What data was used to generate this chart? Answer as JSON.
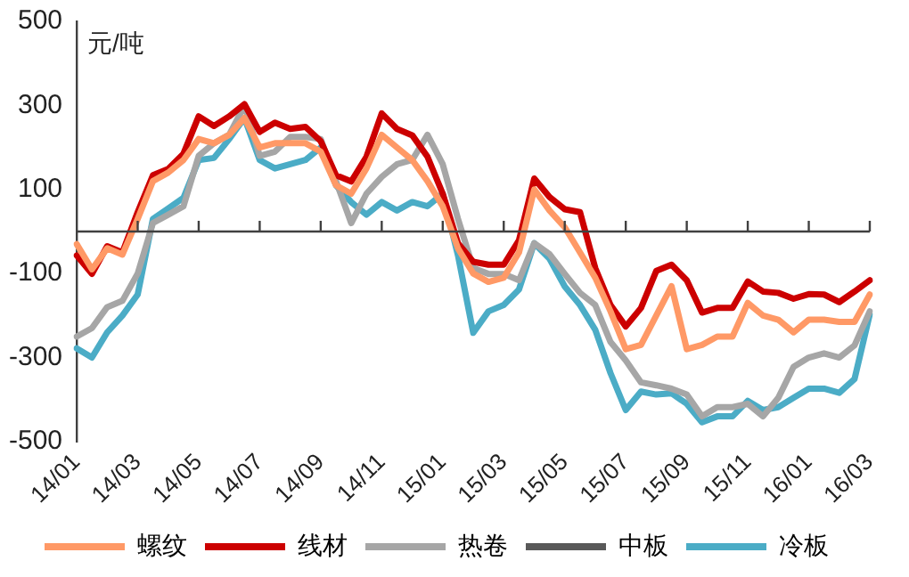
{
  "chart_data": {
    "type": "line",
    "ylabel": "元/吨",
    "categories": [
      "14/01",
      null,
      null,
      null,
      "14/03",
      null,
      null,
      null,
      "14/05",
      null,
      null,
      null,
      "14/07",
      null,
      null,
      null,
      "14/09",
      null,
      null,
      null,
      "14/11",
      null,
      null,
      null,
      "15/01",
      null,
      null,
      null,
      "15/03",
      null,
      null,
      null,
      "15/05",
      null,
      null,
      null,
      "15/07",
      null,
      null,
      null,
      "15/09",
      null,
      null,
      null,
      "15/11",
      null,
      null,
      null,
      "16/01",
      null,
      null,
      null,
      "16/03"
    ],
    "series": [
      {
        "name": "螺纹",
        "color": "#ff9966",
        "values": [
          -30,
          -90,
          -40,
          -55,
          30,
          120,
          140,
          170,
          220,
          210,
          230,
          270,
          200,
          210,
          210,
          210,
          190,
          110,
          90,
          150,
          230,
          200,
          170,
          120,
          60,
          -40,
          -100,
          -120,
          -110,
          -50,
          100,
          50,
          10,
          -50,
          -110,
          -190,
          -280,
          -270,
          -200,
          -130,
          -280,
          -270,
          -250,
          -250,
          -170,
          -200,
          -210,
          -240,
          -210,
          -210,
          -215,
          -215,
          -150
        ]
      },
      {
        "name": "线材",
        "color": "#cc0000",
        "values": [
          -57,
          -101,
          -35,
          -50,
          46,
          134,
          149,
          185,
          274,
          251,
          274,
          303,
          237,
          259,
          244,
          249,
          215,
          134,
          119,
          178,
          281,
          244,
          229,
          178,
          90,
          -28,
          -72,
          -79,
          -79,
          -21,
          126,
          82,
          53,
          46,
          -87,
          -175,
          -226,
          -182,
          -94,
          -79,
          -116,
          -193,
          -182,
          -182,
          -119,
          -143,
          -146,
          -160,
          -149,
          -150,
          -168,
          -143,
          -116
        ]
      },
      {
        "name": "热卷",
        "color": "#a6a6a6",
        "values": [
          -250,
          -230,
          -180,
          -165,
          -100,
          20,
          40,
          60,
          180,
          210,
          230,
          300,
          180,
          190,
          225,
          225,
          220,
          120,
          20,
          90,
          130,
          160,
          170,
          230,
          160,
          30,
          -87,
          -101,
          -101,
          -116,
          -28,
          -54,
          -101,
          -146,
          -175,
          -263,
          -307,
          -359,
          -366,
          -374,
          -388,
          -440,
          -418,
          -418,
          -410,
          -440,
          -396,
          -322,
          -300,
          -290,
          -300,
          -271,
          -190
        ]
      },
      {
        "name": "中板",
        "color": "#595959",
        "values": [
          null,
          null,
          null,
          null,
          null,
          null,
          null,
          null,
          null,
          null,
          null,
          null,
          null,
          null,
          null,
          null,
          null,
          null,
          null,
          null,
          null,
          null,
          null,
          null,
          null,
          null,
          null,
          null,
          null,
          null,
          null,
          null,
          null,
          null,
          null,
          null,
          null,
          null,
          null,
          null,
          null,
          null,
          null,
          null,
          null,
          null,
          null,
          null,
          null,
          null,
          null,
          null,
          null
        ]
      },
      {
        "name": "冷板",
        "color": "#4bacc6",
        "values": [
          -278,
          -300,
          -240,
          -200,
          -150,
          30,
          55,
          80,
          170,
          175,
          220,
          270,
          170,
          150,
          160,
          170,
          200,
          110,
          70,
          40,
          70,
          50,
          70,
          60,
          90,
          -57,
          -241,
          -190,
          -175,
          -138,
          -28,
          -65,
          -131,
          -175,
          -234,
          -337,
          -425,
          -381,
          -388,
          -385,
          -410,
          -454,
          -440,
          -440,
          -403,
          -425,
          -418,
          -396,
          -374,
          -374,
          -384,
          -351,
          -197
        ]
      }
    ],
    "ylim": [
      -500,
      500
    ],
    "yticks": [
      -500,
      -300,
      -100,
      100,
      300,
      500
    ],
    "grid": false,
    "legend": "bottom",
    "marker": "none",
    "line_style": "solid"
  }
}
